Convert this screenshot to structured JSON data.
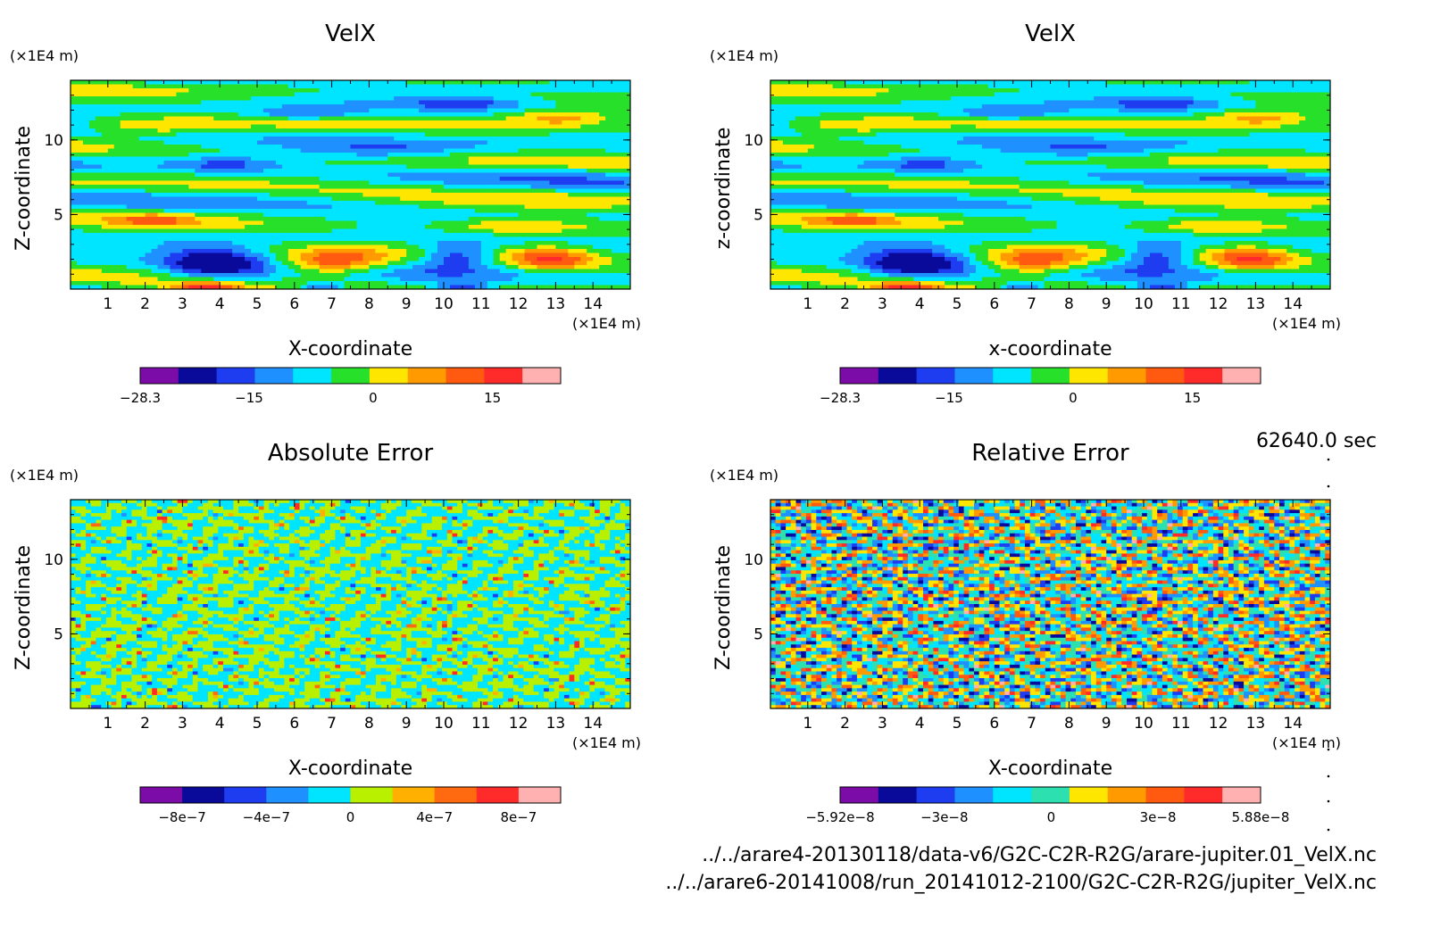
{
  "time_label": "62640.0 sec",
  "footer": {
    "line1": "../../arare4-20130118/data-v6/G2C-C2R-R2G/arare-jupiter.01_VelX.nc",
    "line2": "../../arare6-20141008/run_20141012-2100/G2C-C2R-R2G/jupiter_VelX.nc"
  },
  "chart_data": [
    {
      "type": "heatmap",
      "title": "VelX",
      "xlabel": "X-coordinate",
      "ylabel": "Z-coordinate",
      "x_unit": "(×1E4 m)",
      "y_unit": "(×1E4 m)",
      "xlim": [
        0,
        15
      ],
      "ylim": [
        0,
        14
      ],
      "x_ticks": [
        1,
        2,
        3,
        4,
        5,
        6,
        7,
        8,
        9,
        10,
        11,
        12,
        13,
        14
      ],
      "y_ticks": [
        5,
        10
      ],
      "field": "smooth",
      "colorbar": {
        "colors": [
          "#7b0ca8",
          "#0a0a9a",
          "#1e3cf0",
          "#1e90ff",
          "#00e5ff",
          "#27e02a",
          "#ffe600",
          "#ff9a00",
          "#ff5a10",
          "#ff2a2a",
          "#ffb0b0"
        ],
        "ticks": [
          {
            "label": "−28.3",
            "pos": 0
          },
          {
            "label": "−15",
            "pos": 0.259
          },
          {
            "label": "0",
            "pos": 0.554
          },
          {
            "label": "15",
            "pos": 0.838
          }
        ]
      }
    },
    {
      "type": "heatmap",
      "title": "VelX",
      "xlabel": "x-coordinate",
      "ylabel": "z-coordinate",
      "x_unit": "(×1E4 m)",
      "y_unit": "(×1E4 m)",
      "xlim": [
        0,
        15
      ],
      "ylim": [
        0,
        14
      ],
      "x_ticks": [
        1,
        2,
        3,
        4,
        5,
        6,
        7,
        8,
        9,
        10,
        11,
        12,
        13,
        14
      ],
      "y_ticks": [
        5,
        10
      ],
      "field": "smooth",
      "colorbar": {
        "colors": [
          "#7b0ca8",
          "#0a0a9a",
          "#1e3cf0",
          "#1e90ff",
          "#00e5ff",
          "#27e02a",
          "#ffe600",
          "#ff9a00",
          "#ff5a10",
          "#ff2a2a",
          "#ffb0b0"
        ],
        "ticks": [
          {
            "label": "−28.3",
            "pos": 0
          },
          {
            "label": "−15",
            "pos": 0.259
          },
          {
            "label": "0",
            "pos": 0.554
          },
          {
            "label": "15",
            "pos": 0.838
          }
        ]
      }
    },
    {
      "type": "heatmap",
      "title": "Absolute Error",
      "xlabel": "X-coordinate",
      "ylabel": "Z-coordinate",
      "x_unit": "(×1E4 m)",
      "y_unit": "(×1E4 m)",
      "xlim": [
        0,
        15
      ],
      "ylim": [
        0,
        14
      ],
      "x_ticks": [
        1,
        2,
        3,
        4,
        5,
        6,
        7,
        8,
        9,
        10,
        11,
        12,
        13,
        14
      ],
      "y_ticks": [
        5,
        10
      ],
      "field": "noise-low",
      "colorbar": {
        "colors": [
          "#7b0ca8",
          "#0a0a9a",
          "#1e3cf0",
          "#1e90ff",
          "#00e5ff",
          "#b8f000",
          "#ffb000",
          "#ff6a10",
          "#ff2a2a",
          "#ffb0b0"
        ],
        "ticks": [
          {
            "label": "−8e−7",
            "pos": 0.1
          },
          {
            "label": "−4e−7",
            "pos": 0.3
          },
          {
            "label": "0",
            "pos": 0.5
          },
          {
            "label": "4e−7",
            "pos": 0.7
          },
          {
            "label": "8e−7",
            "pos": 0.9
          }
        ]
      }
    },
    {
      "type": "heatmap",
      "title": "Relative Error",
      "xlabel": "X-coordinate",
      "ylabel": "Z-coordinate",
      "x_unit": "(×1E4 m)",
      "y_unit": "(×1E4 m)",
      "xlim": [
        0,
        15
      ],
      "ylim": [
        0,
        14
      ],
      "x_ticks": [
        1,
        2,
        3,
        4,
        5,
        6,
        7,
        8,
        9,
        10,
        11,
        12,
        13,
        14
      ],
      "y_ticks": [
        5,
        10
      ],
      "field": "noise-high",
      "colorbar": {
        "colors": [
          "#7b0ca8",
          "#0a0a9a",
          "#1e3cf0",
          "#1e90ff",
          "#00e5ff",
          "#2de0b0",
          "#ffe600",
          "#ff9a00",
          "#ff5a10",
          "#ff2a2a",
          "#ffb0b0"
        ],
        "ticks": [
          {
            "label": "−5.92e−8",
            "pos": 0
          },
          {
            "label": "−3e−8",
            "pos": 0.248
          },
          {
            "label": "0",
            "pos": 0.502
          },
          {
            "label": "3e−8",
            "pos": 0.756
          },
          {
            "label": "5.88e−8",
            "pos": 1
          }
        ]
      }
    }
  ]
}
